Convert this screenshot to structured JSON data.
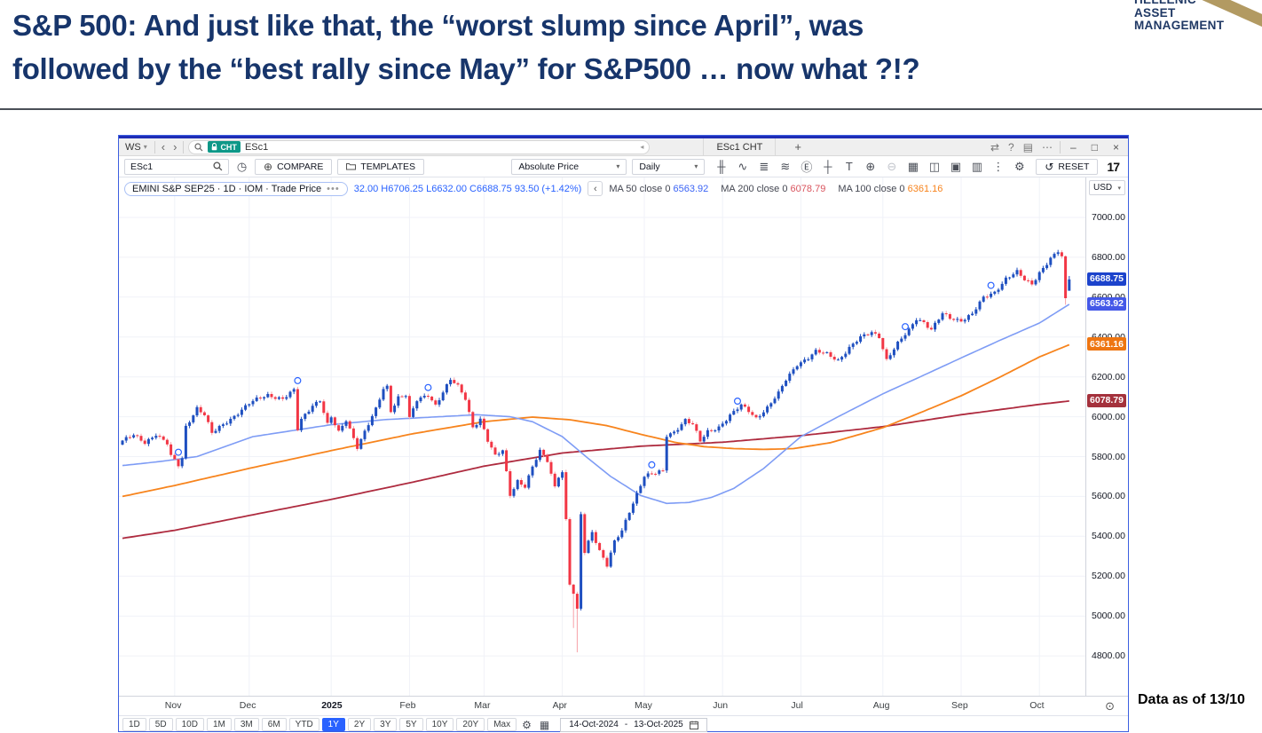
{
  "page": {
    "title_line1": "S&P 500: And just like that, the “worst slump since April”, was",
    "title_line2": "followed by the “best rally since May” for S&P500 … now what ?!?",
    "data_as_of": "Data as of 13/10",
    "logo": {
      "line1": "HELLENIC",
      "line2": "ASSET",
      "line3": "MANAGEMENT"
    }
  },
  "window": {
    "titlebar": {
      "workspace": "WS",
      "ws_caret": "▾",
      "back": "‹",
      "forward": "›",
      "symbol_badge": "CHT",
      "symbol": "ESc1",
      "field_arrow": "◂",
      "tab": "ESc1 CHT",
      "add_tab": "+",
      "right_icons": [
        {
          "name": "share-icon",
          "glyph": "⇄"
        },
        {
          "name": "help-icon",
          "glyph": "?"
        },
        {
          "name": "panels-icon",
          "glyph": "▤"
        },
        {
          "name": "more-icon",
          "glyph": "⋯"
        }
      ],
      "minimize": "–",
      "maximize": "□",
      "close": "×"
    },
    "toolbar": {
      "symbol_search": "ESc1",
      "compare_plus": "⊕",
      "compare": "COMPARE",
      "templates": "TEMPLATES",
      "clock_glyph": "◷",
      "price_mode": "Absolute Price",
      "interval": "Daily",
      "caret": "▾",
      "icons": [
        {
          "name": "chart-style-icon",
          "glyph": "╫",
          "dim": false
        },
        {
          "name": "indicators-icon",
          "glyph": "∿",
          "dim": false
        },
        {
          "name": "layers-icon",
          "glyph": "≣",
          "dim": false
        },
        {
          "name": "waves-icon",
          "glyph": "≋",
          "dim": false
        },
        {
          "name": "events-icon",
          "glyph": "Ⓔ",
          "dim": false
        },
        {
          "name": "compare-scale-icon",
          "glyph": "┼",
          "dim": false
        },
        {
          "name": "text-tool-icon",
          "glyph": "T",
          "dim": false
        },
        {
          "name": "zoom-in-icon",
          "glyph": "⊕",
          "dim": false
        },
        {
          "name": "zoom-out-icon",
          "glyph": "⊖",
          "dim": true
        },
        {
          "name": "table-icon",
          "glyph": "▦",
          "dim": false
        },
        {
          "name": "layout-icon",
          "glyph": "◫",
          "dim": false
        },
        {
          "name": "snapshot-icon",
          "glyph": "▣",
          "dim": false
        },
        {
          "name": "barchart-icon",
          "glyph": "▥",
          "dim": false
        },
        {
          "name": "kebab-icon",
          "glyph": "⋮",
          "dim": false
        },
        {
          "name": "settings-gear-icon",
          "glyph": "⚙",
          "dim": false
        }
      ],
      "reset_glyph": "↺",
      "reset": "RESET",
      "tv_logo": "17"
    },
    "legend": {
      "series": "EMINI S&P SEP25 · 1D · IOM · Trade Price",
      "dots": "•••",
      "ohlc_prefix": "32.00",
      "high": "H6706.25",
      "low": "L6632.00",
      "close": "C6688.75",
      "change": "93.50 (+1.42%)",
      "collapse": "‹",
      "ma": [
        {
          "label": "MA 50 close 0",
          "value": "6563.92",
          "color": "#3B64F5"
        },
        {
          "label": "MA 200 close 0",
          "value": "6078.79",
          "color": "#D9545E"
        },
        {
          "label": "MA 100 close 0",
          "value": "6361.16",
          "color": "#F7831C"
        }
      ]
    },
    "price_axis": {
      "currency": "USD",
      "caret": "▾",
      "ticks": [
        7000,
        6800,
        6600,
        6400,
        6200,
        6000,
        5800,
        5600,
        5400,
        5200,
        5000,
        4800
      ],
      "badges": [
        {
          "value": "6688.75",
          "price": 6688.75,
          "color": "#1C43CC"
        },
        {
          "value": "6563.92",
          "price": 6563.92,
          "color": "#4458E8"
        },
        {
          "value": "6361.16",
          "price": 6361.16,
          "color": "#EE7511"
        },
        {
          "value": "6078.79",
          "price": 6078.79,
          "color": "#A4313C"
        }
      ]
    },
    "time_axis": {
      "labels": [
        {
          "text": "Nov",
          "day": 14,
          "bold": false
        },
        {
          "text": "Dec",
          "day": 34,
          "bold": false
        },
        {
          "text": "2025",
          "day": 56,
          "bold": true
        },
        {
          "text": "Feb",
          "day": 77,
          "bold": false
        },
        {
          "text": "Mar",
          "day": 97,
          "bold": false
        },
        {
          "text": "Apr",
          "day": 118,
          "bold": false
        },
        {
          "text": "May",
          "day": 140,
          "bold": false
        },
        {
          "text": "Jun",
          "day": 161,
          "bold": false
        },
        {
          "text": "Jul",
          "day": 182,
          "bold": false
        },
        {
          "text": "Aug",
          "day": 204,
          "bold": false
        },
        {
          "text": "Sep",
          "day": 225,
          "bold": false
        },
        {
          "text": "Oct",
          "day": 246,
          "bold": false
        }
      ],
      "target_glyph": "⊙"
    },
    "bottom_toolbar": {
      "ranges": [
        "1D",
        "5D",
        "10D",
        "1M",
        "3M",
        "6M",
        "YTD",
        "1Y",
        "2Y",
        "3Y",
        "5Y",
        "10Y",
        "20Y",
        "Max"
      ],
      "selected": "1Y",
      "gear_glyph": "⚙",
      "grid_glyph": "▦",
      "date_from": "14-Oct-2024",
      "date_sep": "-",
      "date_to": "13-Oct-2025"
    }
  },
  "chart_data": {
    "type": "candlestick",
    "title": "EMINI S&P SEP25 · 1D · IOM · Trade Price",
    "x_range": [
      "14-Oct-2024",
      "13-Oct-2025"
    ],
    "y_ticks": [
      4800,
      5000,
      5200,
      5400,
      5600,
      5800,
      6000,
      6200,
      6400,
      6600,
      6800,
      7000
    ],
    "y_range_visible": [
      4600,
      7200
    ],
    "days_total": 255,
    "month_gridline_days": [
      14,
      34,
      56,
      77,
      97,
      118,
      140,
      161,
      182,
      204,
      225,
      246
    ],
    "close_anchors": [
      [
        0,
        5880
      ],
      [
        3,
        5905
      ],
      [
        6,
        5870
      ],
      [
        9,
        5915
      ],
      [
        12,
        5865
      ],
      [
        13,
        5800
      ],
      [
        15,
        5755
      ],
      [
        16,
        5790
      ],
      [
        17,
        5950
      ],
      [
        20,
        6045
      ],
      [
        22,
        6010
      ],
      [
        24,
        5915
      ],
      [
        27,
        5960
      ],
      [
        31,
        6020
      ],
      [
        34,
        6065
      ],
      [
        36,
        6085
      ],
      [
        39,
        6110
      ],
      [
        43,
        6090
      ],
      [
        46,
        6130
      ],
      [
        47,
        5935
      ],
      [
        48,
        5985
      ],
      [
        51,
        6060
      ],
      [
        53,
        6085
      ],
      [
        55,
        5960
      ],
      [
        56,
        5995
      ],
      [
        58,
        5920
      ],
      [
        60,
        5985
      ],
      [
        63,
        5850
      ],
      [
        65,
        5925
      ],
      [
        68,
        6035
      ],
      [
        70,
        6140
      ],
      [
        71,
        6150
      ],
      [
        72,
        6030
      ],
      [
        74,
        6100
      ],
      [
        76,
        6110
      ],
      [
        77,
        5990
      ],
      [
        79,
        6080
      ],
      [
        82,
        6110
      ],
      [
        84,
        6060
      ],
      [
        86,
        6125
      ],
      [
        88,
        6185
      ],
      [
        90,
        6150
      ],
      [
        92,
        6090
      ],
      [
        94,
        5950
      ],
      [
        96,
        5990
      ],
      [
        98,
        5880
      ],
      [
        100,
        5800
      ],
      [
        102,
        5830
      ],
      [
        104,
        5610
      ],
      [
        106,
        5680
      ],
      [
        108,
        5650
      ],
      [
        110,
        5745
      ],
      [
        112,
        5825
      ],
      [
        114,
        5780
      ],
      [
        116,
        5650
      ],
      [
        117,
        5705
      ],
      [
        118,
        5725
      ],
      [
        119,
        5480
      ],
      [
        120,
        5160
      ],
      [
        121,
        5110
      ],
      [
        122,
        5025
      ],
      [
        123,
        5510
      ],
      [
        124,
        5320
      ],
      [
        126,
        5425
      ],
      [
        128,
        5330
      ],
      [
        130,
        5255
      ],
      [
        132,
        5370
      ],
      [
        134,
        5425
      ],
      [
        136,
        5525
      ],
      [
        138,
        5615
      ],
      [
        140,
        5705
      ],
      [
        143,
        5715
      ],
      [
        145,
        5725
      ],
      [
        146,
        5905
      ],
      [
        148,
        5925
      ],
      [
        151,
        5985
      ],
      [
        153,
        5960
      ],
      [
        155,
        5875
      ],
      [
        157,
        5925
      ],
      [
        160,
        5950
      ],
      [
        163,
        6005
      ],
      [
        166,
        6055
      ],
      [
        168,
        6030
      ],
      [
        170,
        5995
      ],
      [
        173,
        6045
      ],
      [
        176,
        6115
      ],
      [
        178,
        6185
      ],
      [
        181,
        6265
      ],
      [
        184,
        6295
      ],
      [
        186,
        6325
      ],
      [
        189,
        6315
      ],
      [
        192,
        6285
      ],
      [
        195,
        6345
      ],
      [
        198,
        6395
      ],
      [
        201,
        6425
      ],
      [
        203,
        6405
      ],
      [
        205,
        6285
      ],
      [
        208,
        6365
      ],
      [
        211,
        6435
      ],
      [
        213,
        6495
      ],
      [
        215,
        6475
      ],
      [
        217,
        6435
      ],
      [
        220,
        6515
      ],
      [
        222,
        6495
      ],
      [
        225,
        6485
      ],
      [
        228,
        6515
      ],
      [
        231,
        6595
      ],
      [
        234,
        6625
      ],
      [
        237,
        6695
      ],
      [
        240,
        6725
      ],
      [
        242,
        6685
      ],
      [
        244,
        6665
      ],
      [
        246,
        6725
      ],
      [
        249,
        6795
      ],
      [
        251,
        6825
      ],
      [
        252,
        6805
      ],
      [
        253,
        6595
      ],
      [
        254,
        6688.75
      ]
    ],
    "last_candle": {
      "open": 6632.0,
      "high": 6706.25,
      "low": 6632.0,
      "close": 6688.75,
      "change": "+93.50 (+1.42%)"
    },
    "wick_overrides": {
      "121": 4940,
      "122": 4818,
      "253": 6562
    },
    "ma50_anchors": [
      [
        0,
        5755
      ],
      [
        10,
        5775
      ],
      [
        20,
        5800
      ],
      [
        35,
        5900
      ],
      [
        56,
        5960
      ],
      [
        70,
        5985
      ],
      [
        85,
        6000
      ],
      [
        95,
        6010
      ],
      [
        104,
        6000
      ],
      [
        110,
        5975
      ],
      [
        118,
        5900
      ],
      [
        125,
        5790
      ],
      [
        131,
        5700
      ],
      [
        139,
        5605
      ],
      [
        146,
        5565
      ],
      [
        152,
        5570
      ],
      [
        158,
        5595
      ],
      [
        164,
        5640
      ],
      [
        172,
        5740
      ],
      [
        182,
        5900
      ],
      [
        192,
        6000
      ],
      [
        204,
        6115
      ],
      [
        214,
        6200
      ],
      [
        225,
        6295
      ],
      [
        235,
        6380
      ],
      [
        246,
        6470
      ],
      [
        254,
        6563.92
      ]
    ],
    "ma100_anchors": [
      [
        0,
        5600
      ],
      [
        14,
        5655
      ],
      [
        35,
        5745
      ],
      [
        56,
        5830
      ],
      [
        78,
        5915
      ],
      [
        97,
        5975
      ],
      [
        110,
        5998
      ],
      [
        120,
        5985
      ],
      [
        130,
        5955
      ],
      [
        139,
        5912
      ],
      [
        148,
        5872
      ],
      [
        156,
        5850
      ],
      [
        164,
        5840
      ],
      [
        172,
        5836
      ],
      [
        180,
        5840
      ],
      [
        190,
        5870
      ],
      [
        204,
        5945
      ],
      [
        214,
        6020
      ],
      [
        225,
        6105
      ],
      [
        235,
        6195
      ],
      [
        246,
        6300
      ],
      [
        254,
        6361.16
      ]
    ],
    "ma200_anchors": [
      [
        0,
        5390
      ],
      [
        14,
        5430
      ],
      [
        35,
        5508
      ],
      [
        56,
        5585
      ],
      [
        78,
        5672
      ],
      [
        97,
        5752
      ],
      [
        118,
        5818
      ],
      [
        139,
        5852
      ],
      [
        161,
        5872
      ],
      [
        182,
        5905
      ],
      [
        204,
        5950
      ],
      [
        225,
        6010
      ],
      [
        246,
        6062
      ],
      [
        254,
        6078.79
      ]
    ],
    "ma_last": {
      "ma50": 6563.92,
      "ma100": 6361.16,
      "ma200": 6078.79
    },
    "markers_days": [
      15,
      47,
      82,
      142,
      165,
      210,
      233
    ],
    "colors": {
      "up": "#1E4FC0",
      "down": "#F23645",
      "down_wick": "#F7A1A8",
      "ma50": "#7E9CF5",
      "ma100": "#F7841D",
      "ma200": "#AE2B3F",
      "grid": "#F0F2F8"
    }
  }
}
